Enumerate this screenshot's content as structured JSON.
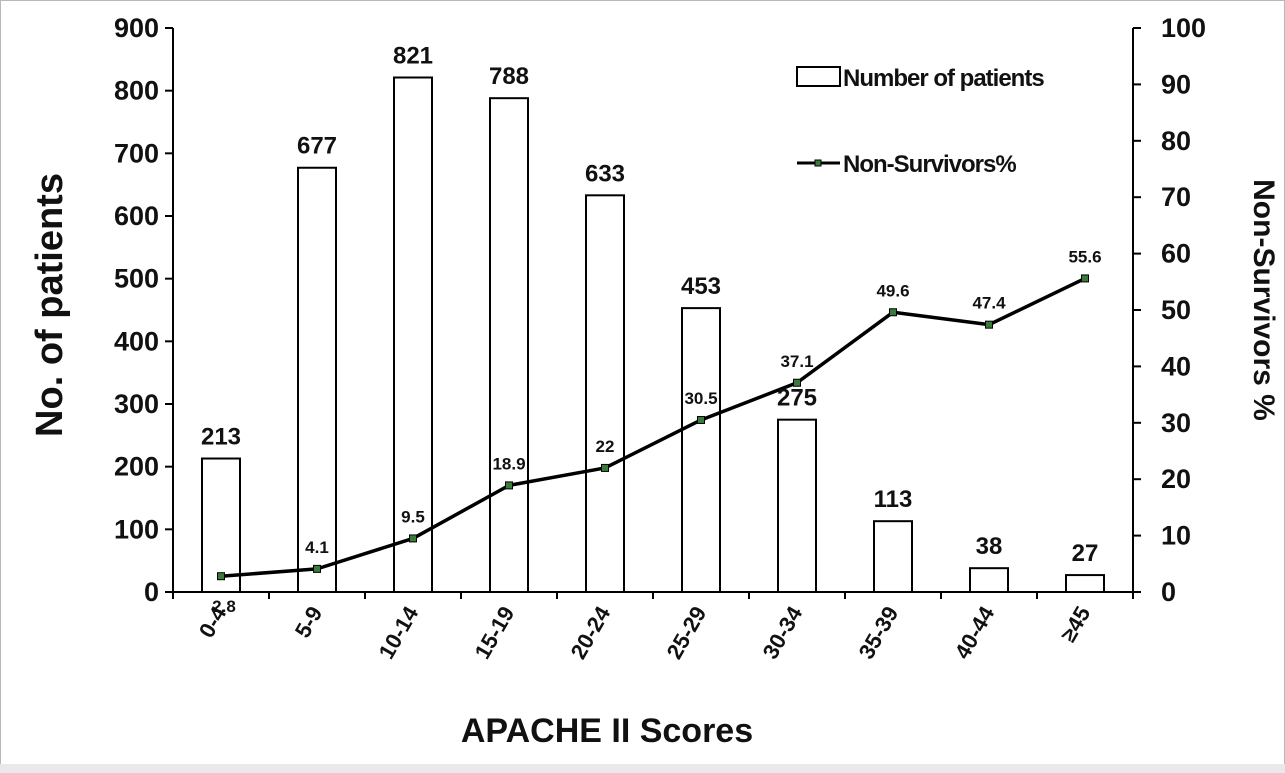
{
  "chart_data": {
    "type": "bar",
    "categories": [
      "0-4",
      "5-9",
      "10-14",
      "15-19",
      "20-24",
      "25-29",
      "30-34",
      "35-39",
      "40-44",
      "≥45"
    ],
    "series": [
      {
        "name": "Number of patients",
        "type": "bar",
        "axis": "left",
        "values": [
          213,
          677,
          821,
          788,
          633,
          453,
          275,
          113,
          38,
          27
        ],
        "labels": [
          "213",
          "677",
          "821",
          "788",
          "633",
          "453",
          "275",
          "113",
          "38",
          "27"
        ],
        "color": "#ffffff",
        "stroke": "#000000"
      },
      {
        "name": "Non-Survivors%",
        "type": "line",
        "axis": "right",
        "values": [
          2.8,
          4.1,
          9.5,
          18.9,
          22,
          30.5,
          37.1,
          49.6,
          47.4,
          55.6
        ],
        "labels": [
          "2.8",
          "4.1",
          "9.5",
          "18.9",
          "22",
          "30.5",
          "37.1",
          "49.6",
          "47.4",
          "55.6"
        ],
        "color": "#000000",
        "marker_color": "#3a7a3a"
      }
    ],
    "xlabel": "APACHE II Scores",
    "ylabel": "No. of patients",
    "y2label": "Non-Survivors %",
    "ylim": [
      0,
      900
    ],
    "y2lim": [
      0,
      100
    ],
    "yticks": [
      "0",
      "100",
      "200",
      "300",
      "400",
      "500",
      "600",
      "700",
      "800",
      "900"
    ],
    "y2ticks": [
      "0",
      "10",
      "20",
      "30",
      "40",
      "50",
      "60",
      "70",
      "80",
      "90",
      "100"
    ],
    "grid": false,
    "legend": "top-right"
  }
}
